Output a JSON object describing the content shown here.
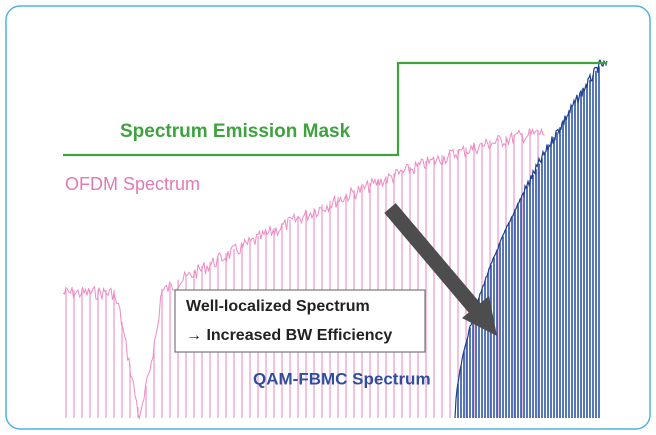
{
  "labels": {
    "mask": "Spectrum Emission Mask",
    "ofdm": "OFDM Spectrum",
    "box_line1": "Well-localized Spectrum",
    "box_line2": "→ Increased BW Efficiency",
    "fbmc": "QAM-FBMC Spectrum"
  }
}
